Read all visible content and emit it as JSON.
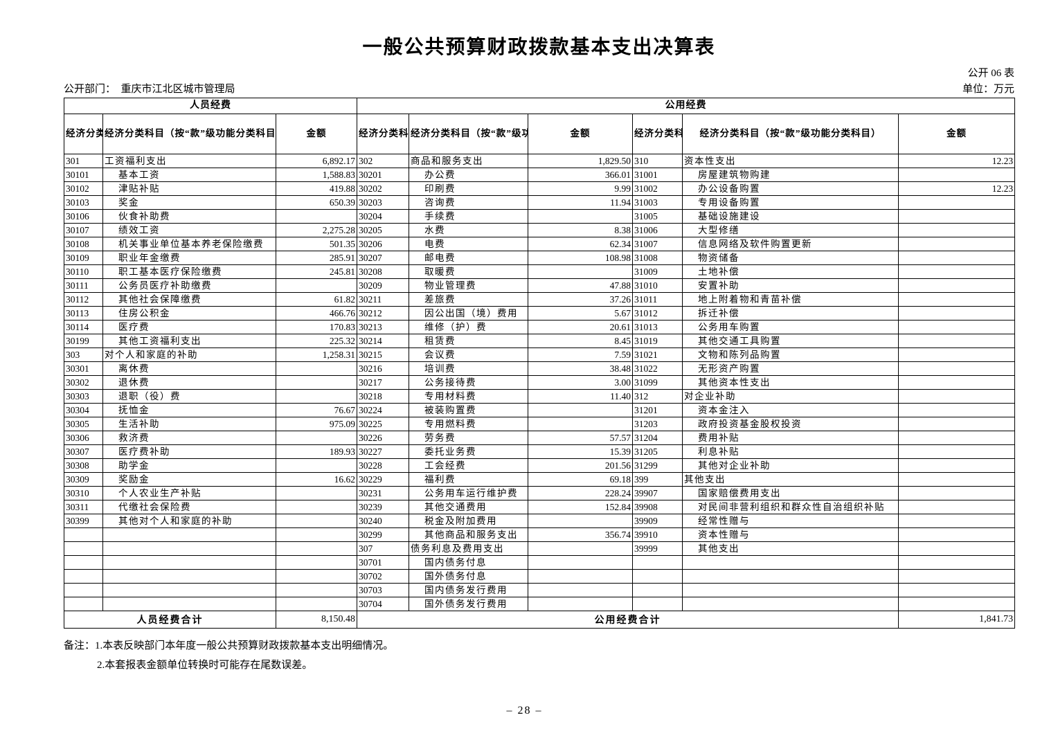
{
  "header": {
    "title": "一般公共预算财政拨款基本支出决算表",
    "form_number": "公开 06 表",
    "department": "公开部门：　重庆市江北区城市管理局",
    "unit": "单位：万元"
  },
  "table": {
    "group_headers": [
      "人员经费",
      "公用经费"
    ],
    "column_headers": [
      "经济分类科目编码",
      "经济分类科目（按“款”级功能分类科目）",
      "金额"
    ],
    "rows": [
      [
        "301",
        "工资福利支出",
        "6,892.17",
        "302",
        "商品和服务支出",
        "1,829.50",
        "310",
        "资本性支出",
        "12.23"
      ],
      [
        "30101",
        "基本工资",
        "1,588.83",
        "30201",
        "办公费",
        "366.01",
        "31001",
        "房屋建筑物购建",
        ""
      ],
      [
        "30102",
        "津贴补贴",
        "419.88",
        "30202",
        "印刷费",
        "9.99",
        "31002",
        "办公设备购置",
        "12.23"
      ],
      [
        "30103",
        "奖金",
        "650.39",
        "30203",
        "咨询费",
        "11.94",
        "31003",
        "专用设备购置",
        ""
      ],
      [
        "30106",
        "伙食补助费",
        "",
        "30204",
        "手续费",
        "",
        "31005",
        "基础设施建设",
        ""
      ],
      [
        "30107",
        "绩效工资",
        "2,275.28",
        "30205",
        "水费",
        "8.38",
        "31006",
        "大型修缮",
        ""
      ],
      [
        "30108",
        "机关事业单位基本养老保险缴费",
        "501.35",
        "30206",
        "电费",
        "62.34",
        "31007",
        "信息网络及软件购置更新",
        ""
      ],
      [
        "30109",
        "职业年金缴费",
        "285.91",
        "30207",
        "邮电费",
        "108.98",
        "31008",
        "物资储备",
        ""
      ],
      [
        "30110",
        "职工基本医疗保险缴费",
        "245.81",
        "30208",
        "取暖费",
        "",
        "31009",
        "土地补偿",
        ""
      ],
      [
        "30111",
        "公务员医疗补助缴费",
        "",
        "30209",
        "物业管理费",
        "47.88",
        "31010",
        "安置补助",
        ""
      ],
      [
        "30112",
        "其他社会保障缴费",
        "61.82",
        "30211",
        "差旅费",
        "37.26",
        "31011",
        "地上附着物和青苗补偿",
        ""
      ],
      [
        "30113",
        "住房公积金",
        "466.76",
        "30212",
        "因公出国（境）费用",
        "5.67",
        "31012",
        "拆迁补偿",
        ""
      ],
      [
        "30114",
        "医疗费",
        "170.83",
        "30213",
        "维修（护）费",
        "20.61",
        "31013",
        "公务用车购置",
        ""
      ],
      [
        "30199",
        "其他工资福利支出",
        "225.32",
        "30214",
        "租赁费",
        "8.45",
        "31019",
        "其他交通工具购置",
        ""
      ],
      [
        "303",
        "对个人和家庭的补助",
        "1,258.31",
        "30215",
        "会议费",
        "7.59",
        "31021",
        "文物和陈列品购置",
        ""
      ],
      [
        "30301",
        "离休费",
        "",
        "30216",
        "培训费",
        "38.48",
        "31022",
        "无形资产购置",
        ""
      ],
      [
        "30302",
        "退休费",
        "",
        "30217",
        "公务接待费",
        "3.00",
        "31099",
        "其他资本性支出",
        ""
      ],
      [
        "30303",
        "退职（役）费",
        "",
        "30218",
        "专用材料费",
        "11.40",
        "312",
        "对企业补助",
        ""
      ],
      [
        "30304",
        "抚恤金",
        "76.67",
        "30224",
        "被装购置费",
        "",
        "31201",
        "资本金注入",
        ""
      ],
      [
        "30305",
        "生活补助",
        "975.09",
        "30225",
        "专用燃料费",
        "",
        "31203",
        "政府投资基金股权投资",
        ""
      ],
      [
        "30306",
        "救济费",
        "",
        "30226",
        "劳务费",
        "57.57",
        "31204",
        "费用补贴",
        ""
      ],
      [
        "30307",
        "医疗费补助",
        "189.93",
        "30227",
        "委托业务费",
        "15.39",
        "31205",
        "利息补贴",
        ""
      ],
      [
        "30308",
        "助学金",
        "",
        "30228",
        "工会经费",
        "201.56",
        "31299",
        "其他对企业补助",
        ""
      ],
      [
        "30309",
        "奖励金",
        "16.62",
        "30229",
        "福利费",
        "69.18",
        "399",
        "其他支出",
        ""
      ],
      [
        "30310",
        "个人农业生产补贴",
        "",
        "30231",
        "公务用车运行维护费",
        "228.24",
        "39907",
        "国家赔偿费用支出",
        ""
      ],
      [
        "30311",
        "代缴社会保险费",
        "",
        "30239",
        "其他交通费用",
        "152.84",
        "39908",
        "对民间非营利组织和群众性自治组织补贴",
        ""
      ],
      [
        "30399",
        "其他对个人和家庭的补助",
        "",
        "30240",
        "税金及附加费用",
        "",
        "39909",
        "经常性赠与",
        ""
      ],
      [
        "",
        "",
        "",
        "30299",
        "其他商品和服务支出",
        "356.74",
        "39910",
        "资本性赠与",
        ""
      ],
      [
        "",
        "",
        "",
        "307",
        "债务利息及费用支出",
        "",
        "39999",
        "其他支出",
        ""
      ],
      [
        "",
        "",
        "",
        "30701",
        "国内债务付息",
        "",
        "",
        "",
        ""
      ],
      [
        "",
        "",
        "",
        "30702",
        "国外债务付息",
        "",
        "",
        "",
        ""
      ],
      [
        "",
        "",
        "",
        "30703",
        "国内债务发行费用",
        "",
        "",
        "",
        ""
      ],
      [
        "",
        "",
        "",
        "30704",
        "国外债务发行费用",
        "",
        "",
        "",
        ""
      ]
    ],
    "totals": {
      "personnel_label": "人员经费合计",
      "personnel_amount": "8,150.48",
      "public_label": "公用经费合计",
      "public_amount": "1,841.73"
    }
  },
  "notes": {
    "label": "备注：",
    "items": [
      "1.本表反映部门本年度一般公共预算财政拨款基本支出明细情况。",
      "2.本套报表金额单位转换时可能存在尾数误差。"
    ]
  },
  "footer": {
    "page_number": "– 28 –"
  }
}
